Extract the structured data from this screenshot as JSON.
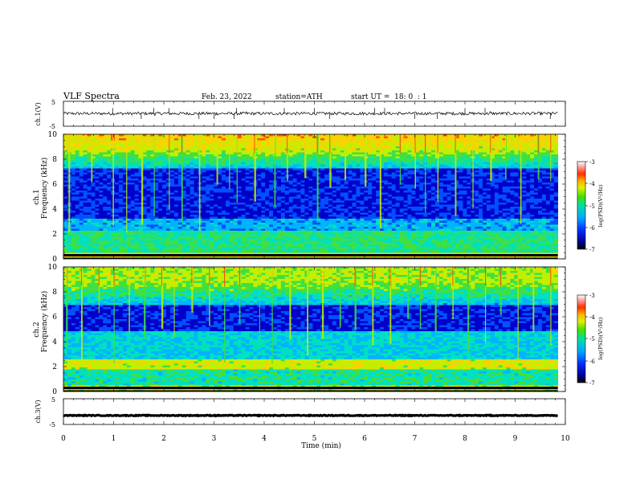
{
  "header": {
    "title": "VLF Spectra",
    "date": "Feb. 23, 2022",
    "station": "station=ATH",
    "start": "start UT =  18: 0  : 1"
  },
  "chart_data": {
    "type": "heatmap",
    "x_axis": {
      "label": "Time (min)",
      "range": [
        0,
        10
      ],
      "ticks": [
        "0",
        "1",
        "2",
        "3",
        "4",
        "5",
        "6",
        "7",
        "8",
        "9",
        "10"
      ]
    },
    "panels": [
      {
        "id": "ch1-waveform",
        "kind": "line",
        "ylabel": "ch.1(V)",
        "ylim": [
          -5,
          5
        ],
        "yticks": [
          "5",
          "-5"
        ],
        "baseline_value": 0.1,
        "amplitude": 0.6,
        "spike_times_min": [
          0.98,
          1.55,
          1.8,
          2.1,
          2.7,
          3.0,
          3.4,
          3.45,
          4.4,
          5.0,
          5.3,
          6.2,
          6.4,
          7.0,
          7.45,
          8.0,
          8.4,
          9.7
        ]
      },
      {
        "id": "ch1-spectrogram",
        "kind": "spectrogram",
        "ylabel": "ch.1",
        "ylabel2": "Frequency (kHz)",
        "ylim": [
          0,
          10
        ],
        "yticks": [
          "0",
          "2",
          "4",
          "6",
          "8",
          "10"
        ],
        "data_extent_min": [
          0,
          9.85
        ],
        "spheric_times_min": [
          0.1,
          0.55,
          0.98,
          1.25,
          1.55,
          1.8,
          2.1,
          2.35,
          2.7,
          3.05,
          3.3,
          3.45,
          3.8,
          4.2,
          4.45,
          4.8,
          5.05,
          5.3,
          5.6,
          6.0,
          6.3,
          6.7,
          7.0,
          7.2,
          7.45,
          7.8,
          8.15,
          8.5,
          8.8,
          9.1,
          9.45,
          9.7
        ],
        "colorbar": {
          "label": "log(PSD)(V²/Hz)",
          "range": [
            -7,
            -3
          ],
          "ticks": [
            "-3",
            "-4",
            "-5",
            "-6",
            "-7"
          ]
        }
      },
      {
        "id": "ch2-spectrogram",
        "kind": "spectrogram",
        "ylabel": "ch.2",
        "ylabel2": "Frequency (kHz)",
        "ylim": [
          0,
          10
        ],
        "yticks": [
          "0",
          "2",
          "4",
          "6",
          "8",
          "10"
        ],
        "data_extent_min": [
          0,
          9.85
        ],
        "spheric_times_min": [
          0.05,
          0.35,
          0.7,
          1.0,
          1.3,
          1.6,
          1.95,
          2.2,
          2.55,
          2.9,
          3.2,
          3.5,
          3.9,
          4.15,
          4.5,
          4.85,
          5.15,
          5.5,
          5.8,
          6.15,
          6.5,
          6.85,
          7.1,
          7.4,
          7.75,
          8.05,
          8.4,
          8.7,
          9.05,
          9.35,
          9.7
        ],
        "colorbar": {
          "label": "log(PSD)(V²/Hz)",
          "range": [
            -7,
            -3
          ],
          "ticks": [
            "-3",
            "-4",
            "-5",
            "-6",
            "-7"
          ]
        }
      },
      {
        "id": "ch3-waveform",
        "kind": "line",
        "ylabel": "ch.3(V)",
        "ylim": [
          -5,
          5
        ],
        "yticks": [
          "5",
          "-5"
        ],
        "baseline_value": -1.5,
        "amplitude": 0.15
      }
    ],
    "colormap": [
      "#000060",
      "#0000c8",
      "#0050ff",
      "#00b4ff",
      "#00e0c0",
      "#40e040",
      "#c0f000",
      "#ffd000",
      "#ff5000",
      "#e00000",
      "#ffffff"
    ]
  }
}
